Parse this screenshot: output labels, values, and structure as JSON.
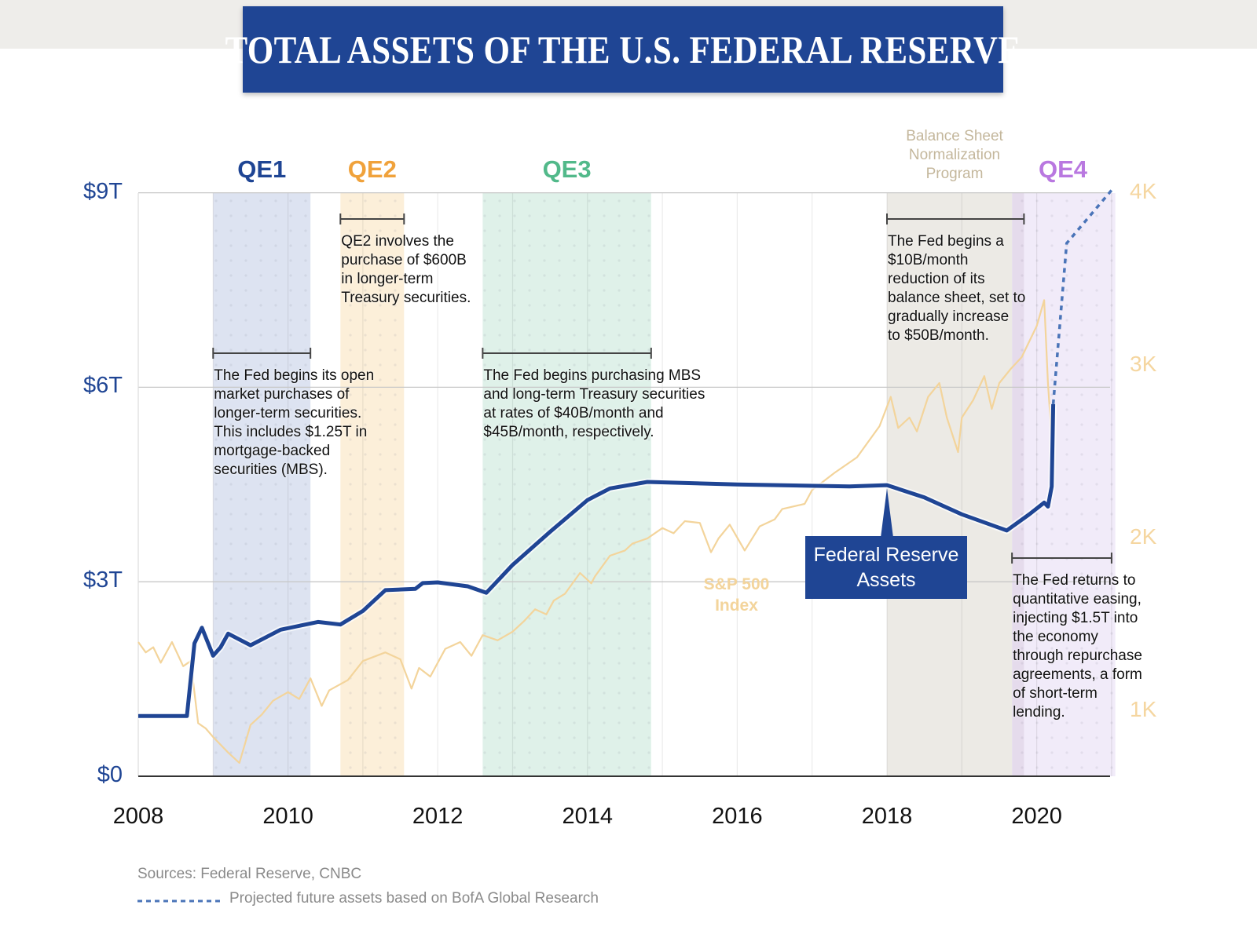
{
  "title": "TOTAL ASSETS OF THE U.S. FEDERAL RESERVE",
  "colors": {
    "fed": "#1f4594",
    "snp": "#f3d49b",
    "qe1": "#dde3f1",
    "qe2": "#fcefd9",
    "qe3": "#dff1e9",
    "normalization": "#eceae5",
    "qe4": "#f1ebf9"
  },
  "periods": [
    {
      "label": "QE1",
      "start": 2009.0,
      "end": 2010.3,
      "color": "#1f4594",
      "fill": "#dde3f1"
    },
    {
      "label": "QE2",
      "start": 2010.7,
      "end": 2011.55,
      "color": "#f0a23b",
      "fill": "#fcefd9"
    },
    {
      "label": "QE3",
      "start": 2012.6,
      "end": 2014.85,
      "color": "#52b98a",
      "fill": "#dff1e9"
    },
    {
      "label": "Balance Sheet\nNormalization\nProgram",
      "start": 2018.0,
      "end": 2019.67,
      "color": "#c4b79c",
      "fill": "#eceae5"
    },
    {
      "label": "QE4",
      "start": 2019.67,
      "end": 2021.05,
      "color": "#b978e0",
      "fill": "#f1ebf9"
    }
  ],
  "annotations": [
    {
      "text": "The Fed begins its open\nmarket purchases of\nlonger-term securities.\nThis includes $1.25T in\nmortgage-backed\nsecurities (MBS).",
      "start": 2009.0,
      "end": 2010.3
    },
    {
      "text": "QE2 involves the\npurchase of $600B\nin longer-term\nTreasury securities.",
      "start": 2010.7,
      "end": 2011.55
    },
    {
      "text": "The Fed begins purchasing MBS\nand long-term Treasury securities\nat rates of $40B/month and\n$45B/month, respectively.",
      "start": 2012.6,
      "end": 2014.85
    },
    {
      "text": "The Fed begins a\n$10B/month\nreduction of its\nbalance sheet, set to\ngradually increase\nto $50B/month.",
      "start": 2018.0,
      "end": 2019.83
    },
    {
      "text": "The Fed returns to\nquantitative easing,\ninjecting $1.5T into\nthe economy\nthrough repurchase\nagreements, a form\nof short-term\nlending.",
      "start": 2019.67,
      "end": 2021.0
    }
  ],
  "chart_data": {
    "type": "line",
    "title": "TOTAL ASSETS OF THE U.S. FEDERAL RESERVE",
    "xlim": [
      2008,
      2021
    ],
    "x_ticks": [
      "2008",
      "2010",
      "2012",
      "2014",
      "2016",
      "2018",
      "2020"
    ],
    "y_left": {
      "lim": [
        0,
        9
      ],
      "ticks": [
        "$0",
        "$3T",
        "$6T",
        "$9T"
      ],
      "grid": true
    },
    "y_right": {
      "lim": [
        0,
        4000
      ],
      "ticks": [
        "1K",
        "2K",
        "3K",
        "4K"
      ]
    },
    "series": [
      {
        "name": "Federal Reserve\nAssets",
        "axis": "left",
        "unit": "trillion USD",
        "x": [
          2008.0,
          2008.65,
          2008.75,
          2008.85,
          2009.0,
          2009.1,
          2009.2,
          2009.5,
          2009.9,
          2010.4,
          2010.7,
          2011.0,
          2011.3,
          2011.7,
          2011.8,
          2012.0,
          2012.4,
          2012.65,
          2013.0,
          2013.5,
          2014.0,
          2014.3,
          2014.8,
          2016.0,
          2017.5,
          2018.0,
          2018.5,
          2019.0,
          2019.6,
          2019.9,
          2020.1,
          2020.15,
          2020.2,
          2020.22
        ],
        "y": [
          0.93,
          0.93,
          2.05,
          2.29,
          1.86,
          1.99,
          2.2,
          2.02,
          2.26,
          2.38,
          2.34,
          2.55,
          2.87,
          2.89,
          2.98,
          2.99,
          2.93,
          2.83,
          3.26,
          3.77,
          4.26,
          4.44,
          4.54,
          4.5,
          4.47,
          4.49,
          4.3,
          4.04,
          3.79,
          4.04,
          4.22,
          4.16,
          4.47,
          5.74
        ]
      },
      {
        "name": "S&P 500\nIndex",
        "axis": "right",
        "unit": "index points",
        "x": [
          2008.0,
          2008.1,
          2008.2,
          2008.3,
          2008.45,
          2008.6,
          2008.7,
          2008.8,
          2008.9,
          2009.0,
          2009.2,
          2009.35,
          2009.5,
          2009.65,
          2009.8,
          2010.0,
          2010.15,
          2010.3,
          2010.45,
          2010.55,
          2010.8,
          2011.0,
          2011.3,
          2011.5,
          2011.65,
          2011.75,
          2011.9,
          2012.1,
          2012.3,
          2012.45,
          2012.6,
          2012.8,
          2013.0,
          2013.15,
          2013.3,
          2013.45,
          2013.55,
          2013.7,
          2013.9,
          2014.05,
          2014.1,
          2014.3,
          2014.5,
          2014.6,
          2014.8,
          2015.0,
          2015.15,
          2015.3,
          2015.5,
          2015.65,
          2015.75,
          2015.9,
          2016.1,
          2016.3,
          2016.5,
          2016.6,
          2016.9,
          2017.0,
          2017.3,
          2017.6,
          2017.9,
          2018.05,
          2018.15,
          2018.3,
          2018.4,
          2018.55,
          2018.7,
          2018.8,
          2018.95,
          2019.0,
          2019.15,
          2019.3,
          2019.4,
          2019.5,
          2019.65,
          2019.8,
          2020.0,
          2020.1,
          2020.15,
          2020.2,
          2020.22
        ],
        "y": [
          1400,
          1340,
          1370,
          1280,
          1400,
          1260,
          1290,
          930,
          900,
          850,
          760,
          700,
          920,
          980,
          1060,
          1110,
          1070,
          1190,
          1030,
          1120,
          1180,
          1290,
          1340,
          1300,
          1130,
          1250,
          1200,
          1360,
          1400,
          1320,
          1440,
          1410,
          1460,
          1520,
          1590,
          1560,
          1640,
          1680,
          1800,
          1740,
          1780,
          1900,
          1930,
          1970,
          2000,
          2060,
          2030,
          2100,
          2090,
          1920,
          2000,
          2080,
          1930,
          2070,
          2110,
          2170,
          2200,
          2280,
          2380,
          2470,
          2650,
          2820,
          2640,
          2700,
          2620,
          2820,
          2900,
          2700,
          2500,
          2700,
          2800,
          2940,
          2750,
          2900,
          2980,
          3050,
          3230,
          3380,
          2900,
          2580,
          2600
        ]
      },
      {
        "name": "Projected future assets based on BofA Global Research",
        "axis": "left",
        "style": "dotted",
        "x": [
          2020.22,
          2020.4,
          2021.0
        ],
        "y": [
          5.74,
          8.22,
          9.04
        ]
      }
    ]
  },
  "legend": {
    "sources": "Sources: Federal Reserve, CNBC",
    "projection": "Projected future assets based on BofA Global Research"
  },
  "labels": {
    "fed": "Federal Reserve\nAssets",
    "snp": "S&P 500\nIndex"
  }
}
